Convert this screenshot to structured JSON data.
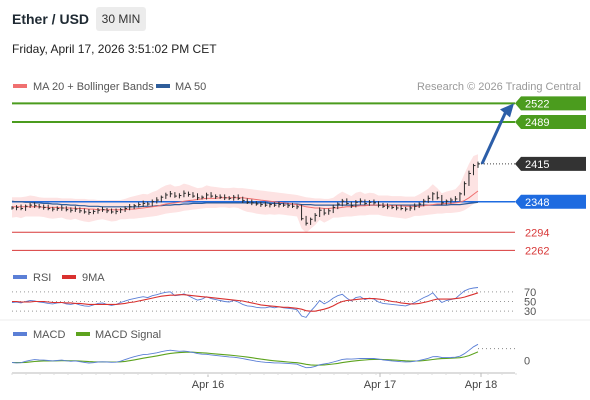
{
  "header": {
    "title": "Ether / USD",
    "timeframe": "30 MIN",
    "datetime": "Friday, April 17, 2026 3:51:02 PM CET"
  },
  "legend": {
    "ma20_label": "MA 20 + Bollinger Bands",
    "ma50_label": "MA 50",
    "source": "Research © 2026 Trading Central"
  },
  "colors": {
    "price_bar": "#2a2a2a",
    "ma20": "#f07070",
    "ma50": "#2e5d9a",
    "bollinger_fill": "#fde3e3",
    "target": "#4b9c1e",
    "pivot_blue": "#1e6be0",
    "support_red": "#d83838",
    "current_price": "#333333",
    "rsi": "#5b7fd6",
    "rsi_ma": "#d9312f",
    "macd": "#5b7fd6",
    "macd_signal": "#5da31e",
    "arrow": "#2c5ea8"
  },
  "chart_data": {
    "type": "line",
    "symbol": "Ether / USD",
    "interval": "30 MIN",
    "x_ticks": [
      "Apr 16",
      "Apr 17",
      "Apr 18"
    ],
    "price_pane": {
      "ylim": [
        2245,
        2535
      ],
      "levels": [
        {
          "value": 2522,
          "label": "2522",
          "kind": "target"
        },
        {
          "value": 2489,
          "label": "2489",
          "kind": "target"
        },
        {
          "value": 2415,
          "label": "2415",
          "kind": "current"
        },
        {
          "value": 2348,
          "label": "2348",
          "kind": "pivot"
        },
        {
          "value": 2294,
          "label": "2294",
          "kind": "support"
        },
        {
          "value": 2262,
          "label": "2262",
          "kind": "support"
        }
      ],
      "arrow": {
        "from": 2415,
        "to": 2522
      },
      "close": [
        2337,
        2338,
        2336,
        2340,
        2342,
        2341,
        2339,
        2338,
        2336,
        2335,
        2336,
        2337,
        2334,
        2333,
        2335,
        2332,
        2330,
        2329,
        2331,
        2333,
        2334,
        2332,
        2330,
        2331,
        2334,
        2336,
        2339,
        2341,
        2343,
        2345,
        2344,
        2348,
        2351,
        2356,
        2360,
        2362,
        2358,
        2359,
        2363,
        2361,
        2358,
        2355,
        2356,
        2360,
        2358,
        2357,
        2356,
        2355,
        2354,
        2356,
        2354,
        2350,
        2347,
        2346,
        2344,
        2343,
        2342,
        2343,
        2342,
        2343,
        2342,
        2341,
        2340,
        2339,
        2318,
        2310,
        2317,
        2324,
        2333,
        2328,
        2332,
        2338,
        2344,
        2349,
        2345,
        2341,
        2347,
        2349,
        2345,
        2347,
        2346,
        2342,
        2340,
        2339,
        2338,
        2337,
        2336,
        2335,
        2337,
        2340,
        2344,
        2349,
        2354,
        2362,
        2355,
        2346,
        2349,
        2351,
        2353,
        2362,
        2380,
        2398,
        2412,
        2415
      ],
      "ma20": [
        2339,
        2339,
        2339,
        2339,
        2339,
        2339,
        2339,
        2338,
        2338,
        2338,
        2338,
        2337,
        2337,
        2337,
        2336,
        2336,
        2336,
        2335,
        2335,
        2334,
        2334,
        2334,
        2334,
        2334,
        2334,
        2334,
        2335,
        2335,
        2336,
        2337,
        2338,
        2339,
        2340,
        2342,
        2344,
        2345,
        2346,
        2347,
        2349,
        2350,
        2351,
        2352,
        2353,
        2354,
        2354,
        2354,
        2355,
        2355,
        2355,
        2355,
        2355,
        2355,
        2354,
        2353,
        2352,
        2351,
        2350,
        2349,
        2348,
        2347,
        2346,
        2345,
        2344,
        2343,
        2341,
        2339,
        2338,
        2337,
        2337,
        2336,
        2336,
        2337,
        2337,
        2338,
        2339,
        2339,
        2340,
        2341,
        2341,
        2342,
        2342,
        2342,
        2342,
        2342,
        2341,
        2341,
        2341,
        2340,
        2340,
        2340,
        2340,
        2341,
        2342,
        2343,
        2344,
        2344,
        2345,
        2345,
        2346,
        2347,
        2350,
        2355,
        2361,
        2367
      ],
      "ma50": [
        2349,
        2348,
        2348,
        2347,
        2347,
        2346,
        2346,
        2345,
        2345,
        2344,
        2344,
        2343,
        2343,
        2342,
        2342,
        2341,
        2341,
        2340,
        2340,
        2340,
        2339,
        2339,
        2339,
        2339,
        2339,
        2339,
        2339,
        2339,
        2339,
        2340,
        2340,
        2340,
        2341,
        2341,
        2342,
        2342,
        2343,
        2343,
        2344,
        2344,
        2345,
        2345,
        2345,
        2346,
        2346,
        2346,
        2346,
        2346,
        2346,
        2346,
        2346,
        2346,
        2346,
        2346,
        2346,
        2346,
        2346,
        2345,
        2345,
        2345,
        2345,
        2344,
        2344,
        2344,
        2343,
        2343,
        2343,
        2342,
        2342,
        2342,
        2342,
        2342,
        2342,
        2342,
        2342,
        2342,
        2342,
        2342,
        2342,
        2342,
        2342,
        2342,
        2342,
        2342,
        2342,
        2342,
        2342,
        2342,
        2342,
        2342,
        2342,
        2342,
        2342,
        2342,
        2342,
        2342,
        2342,
        2343,
        2343,
        2343,
        2344,
        2345,
        2346,
        2347
      ]
    },
    "rsi_pane": {
      "title": "RSI",
      "ma_label": "9MA",
      "ticks": [
        70,
        50,
        30
      ],
      "ylim": [
        20,
        80
      ],
      "rsi": [
        48,
        49,
        47,
        50,
        52,
        51,
        49,
        48,
        46,
        45,
        47,
        48,
        45,
        44,
        46,
        43,
        41,
        40,
        43,
        46,
        47,
        44,
        42,
        44,
        48,
        51,
        54,
        56,
        58,
        60,
        58,
        62,
        64,
        67,
        69,
        70,
        62,
        63,
        66,
        62,
        57,
        53,
        55,
        60,
        56,
        54,
        52,
        50,
        49,
        52,
        49,
        44,
        41,
        40,
        38,
        37,
        37,
        39,
        37,
        39,
        37,
        36,
        35,
        33,
        20,
        17,
        30,
        40,
        52,
        45,
        50,
        57,
        62,
        65,
        57,
        51,
        58,
        60,
        54,
        57,
        55,
        49,
        46,
        45,
        44,
        43,
        42,
        41,
        44,
        48,
        53,
        58,
        62,
        68,
        57,
        48,
        52,
        54,
        56,
        64,
        72,
        76,
        78,
        79
      ],
      "ma": [
        50,
        50,
        49,
        49,
        49,
        50,
        50,
        50,
        49,
        48,
        48,
        48,
        47,
        47,
        46,
        46,
        45,
        44,
        44,
        44,
        44,
        44,
        44,
        44,
        45,
        46,
        48,
        49,
        51,
        53,
        55,
        57,
        59,
        61,
        62,
        63,
        63,
        64,
        64,
        63,
        62,
        61,
        60,
        59,
        58,
        57,
        56,
        55,
        54,
        53,
        52,
        51,
        49,
        47,
        45,
        43,
        42,
        41,
        40,
        39,
        38,
        38,
        37,
        36,
        34,
        31,
        30,
        30,
        32,
        34,
        37,
        41,
        46,
        50,
        52,
        53,
        54,
        55,
        56,
        56,
        56,
        55,
        54,
        52,
        50,
        49,
        47,
        46,
        45,
        45,
        46,
        48,
        50,
        53,
        55,
        55,
        55,
        55,
        56,
        57,
        59,
        62,
        65,
        68
      ]
    },
    "macd_pane": {
      "title": "MACD",
      "signal_label": "MACD Signal",
      "zero_label": "0",
      "ylim": [
        -9,
        14
      ],
      "macd": [
        -1.5,
        -1.8,
        -1.6,
        -0.5,
        0.3,
        0.8,
        0.6,
        0.4,
        0.1,
        -0.2,
        0.1,
        0.4,
        -0.1,
        -0.5,
        -0.2,
        -0.8,
        -1.4,
        -1.9,
        -1.6,
        -1.1,
        -0.9,
        -1.1,
        -1.3,
        -1.2,
        -0.4,
        0.8,
        2,
        3.1,
        4,
        4.8,
        5,
        5.6,
        6.2,
        7.1,
        7.8,
        8.3,
        7.8,
        7.4,
        7.6,
        7.2,
        6.5,
        5.6,
        5.1,
        5,
        4.6,
        4.2,
        3.8,
        3.4,
        3,
        2.7,
        2.3,
        1.6,
        0.9,
        0.3,
        -0.4,
        -0.9,
        -1.3,
        -1.5,
        -1.8,
        -1.8,
        -2,
        -2.2,
        -2.5,
        -2.8,
        -4.3,
        -5.6,
        -5.4,
        -4.6,
        -3.2,
        -2.6,
        -2,
        -1.1,
        -0.1,
        1,
        1.3,
        1.2,
        1.5,
        1.8,
        1.7,
        1.8,
        1.7,
        1.2,
        0.6,
        0.2,
        -0.2,
        -0.5,
        -0.8,
        -1,
        -0.9,
        -0.5,
        0.2,
        1,
        1.9,
        3.1,
        3.2,
        2.5,
        2.4,
        2.5,
        2.7,
        3.5,
        5.5,
        8.2,
        11,
        13
      ]
    },
    "legend": [
      "MA 20 + Bollinger Bands",
      "MA 50"
    ],
    "source_note": "Research © 2026 Trading Central"
  }
}
